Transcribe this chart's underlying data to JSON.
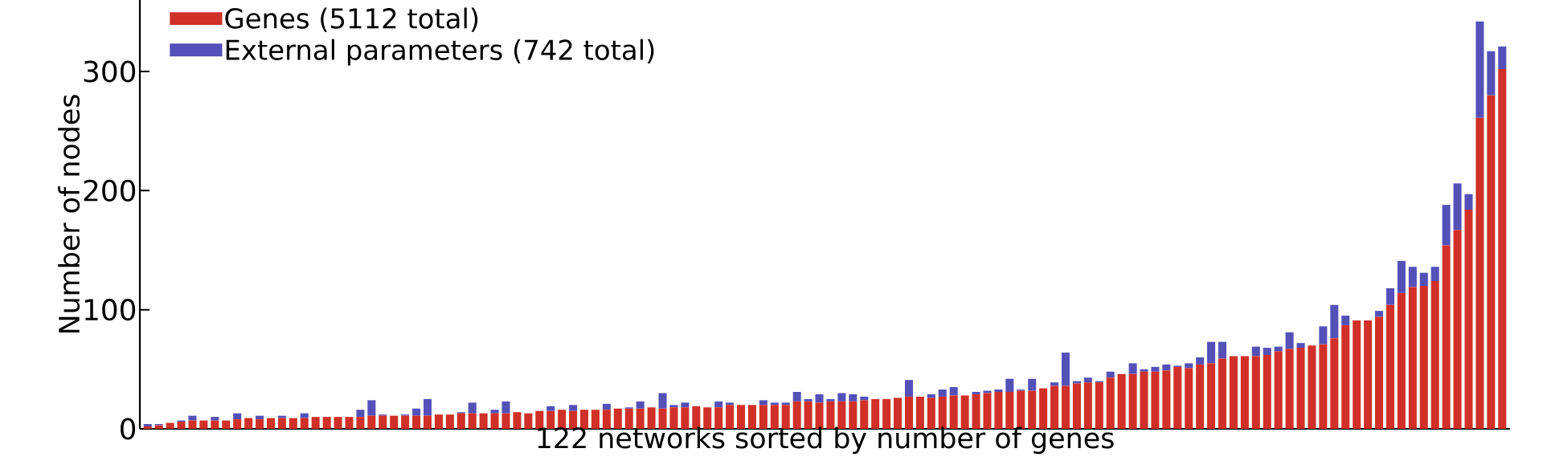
{
  "chart_data": {
    "type": "bar",
    "stacked": true,
    "xlabel": "122 networks sorted by number of genes",
    "ylabel": "Number of nodes",
    "categories": [
      null,
      null,
      null,
      null,
      null,
      null,
      null,
      null,
      null,
      null,
      null,
      null,
      null,
      null,
      null,
      null,
      null,
      null,
      null,
      null,
      null,
      null,
      null,
      null,
      null,
      null,
      null,
      null,
      null,
      null,
      null,
      null,
      null,
      null,
      null,
      null,
      null,
      null,
      null,
      null,
      null,
      null,
      null,
      null,
      null,
      null,
      null,
      null,
      null,
      null,
      null,
      null,
      null,
      null,
      null,
      null,
      null,
      null,
      null,
      null,
      null,
      null,
      null,
      null,
      null,
      null,
      null,
      null,
      null,
      null,
      null,
      null,
      null,
      null,
      null,
      null,
      null,
      null,
      null,
      null,
      null,
      null,
      null,
      null,
      null,
      null,
      null,
      null,
      null,
      null,
      null,
      null,
      null,
      null,
      null,
      null,
      null,
      null,
      null,
      null,
      null,
      null,
      null,
      null,
      null,
      null,
      null,
      null,
      null,
      null,
      null,
      null,
      null,
      null,
      null,
      null,
      null,
      null,
      null,
      null,
      null,
      null
    ],
    "series": [
      {
        "name": "Genes (5112 total)",
        "color": "#d03027",
        "values": [
          2,
          3,
          5,
          6,
          7,
          7,
          7,
          7,
          8,
          9,
          8,
          9,
          9,
          9,
          9,
          10,
          10,
          10,
          10,
          10,
          11,
          11,
          11,
          11,
          11,
          11,
          12,
          12,
          13,
          13,
          13,
          13,
          13,
          14,
          13,
          15,
          15,
          16,
          15,
          16,
          16,
          16,
          17,
          17,
          17,
          18,
          17,
          18,
          18,
          19,
          18,
          18,
          20,
          20,
          20,
          20,
          20,
          20,
          23,
          23,
          22,
          23,
          23,
          23,
          24,
          25,
          25,
          26,
          27,
          27,
          26,
          27,
          28,
          28,
          29,
          30,
          31,
          31,
          32,
          32,
          34,
          36,
          36,
          38,
          39,
          39,
          43,
          46,
          46,
          48,
          48,
          49,
          52,
          51,
          54,
          55,
          59,
          61,
          61,
          61,
          62,
          65,
          67,
          68,
          70,
          71,
          76,
          87,
          91,
          91,
          94,
          104,
          114,
          119,
          120,
          124,
          154,
          167,
          184,
          261,
          280,
          302
        ]
      },
      {
        "name": "External parameters (742 total)",
        "color": "#5450b8",
        "values": [
          2,
          1,
          0,
          1,
          4,
          0,
          3,
          0,
          5,
          0,
          3,
          0,
          2,
          0,
          4,
          0,
          0,
          0,
          0,
          6,
          13,
          1,
          0,
          1,
          6,
          14,
          0,
          0,
          1,
          9,
          0,
          3,
          10,
          0,
          0,
          0,
          4,
          0,
          5,
          0,
          0,
          5,
          0,
          1,
          6,
          0,
          13,
          2,
          4,
          0,
          0,
          5,
          2,
          0,
          0,
          4,
          2,
          2,
          8,
          2,
          7,
          2,
          7,
          6,
          3,
          0,
          0,
          0,
          14,
          0,
          3,
          6,
          7,
          0,
          2,
          2,
          2,
          11,
          1,
          10,
          0,
          3,
          28,
          2,
          4,
          1,
          5,
          0,
          9,
          2,
          4,
          5,
          1,
          4,
          6,
          18,
          14,
          0,
          0,
          8,
          6,
          4,
          14,
          4,
          0,
          15,
          28,
          8,
          0,
          0,
          5,
          14,
          27,
          17,
          11,
          12,
          34,
          39,
          13,
          81,
          37,
          19
        ]
      }
    ],
    "ylim": [
      0,
      360
    ],
    "yticks": [
      0,
      100,
      200,
      300
    ],
    "tick_labels": "y",
    "legend": "top left"
  }
}
